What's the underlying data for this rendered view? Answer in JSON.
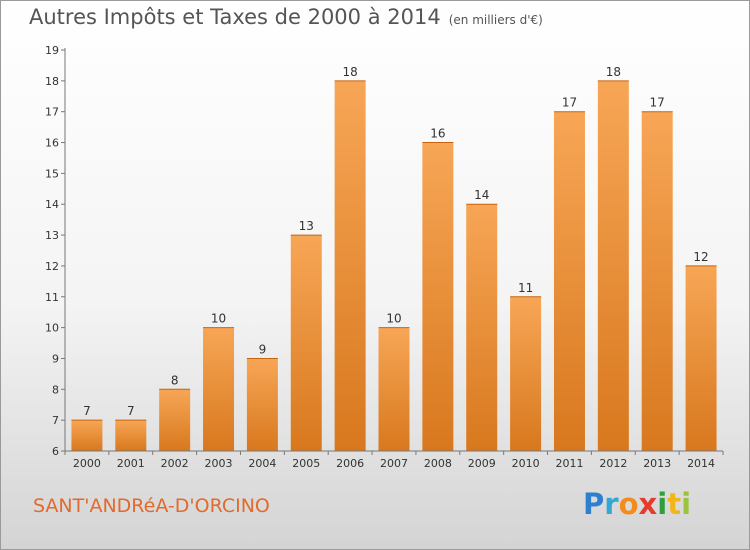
{
  "title": "Autres Impôts et Taxes de 2000 à 2014",
  "title_unit": "(en milliers d'€)",
  "commune": "SANT'ANDRéA-D'ORCINO",
  "logo": {
    "p": "P",
    "r": "r",
    "o": "o",
    "x": "x",
    "i1": "i",
    "t": "t",
    "i2": "i"
  },
  "colors": {
    "bar_light": "#f7a656",
    "bar_dark": "#d8781e",
    "accent": "#e26a2c"
  },
  "chart_data": {
    "type": "bar",
    "categories": [
      "2000",
      "2001",
      "2002",
      "2003",
      "2004",
      "2005",
      "2006",
      "2007",
      "2008",
      "2009",
      "2010",
      "2011",
      "2012",
      "2013",
      "2014"
    ],
    "values": [
      7,
      7,
      8,
      10,
      9,
      13,
      18,
      10,
      16,
      14,
      11,
      17,
      18,
      17,
      12
    ],
    "ylim": [
      6,
      19
    ],
    "yticks": [
      6,
      7,
      8,
      9,
      10,
      11,
      12,
      13,
      14,
      15,
      16,
      17,
      18,
      19
    ],
    "grid": false
  }
}
